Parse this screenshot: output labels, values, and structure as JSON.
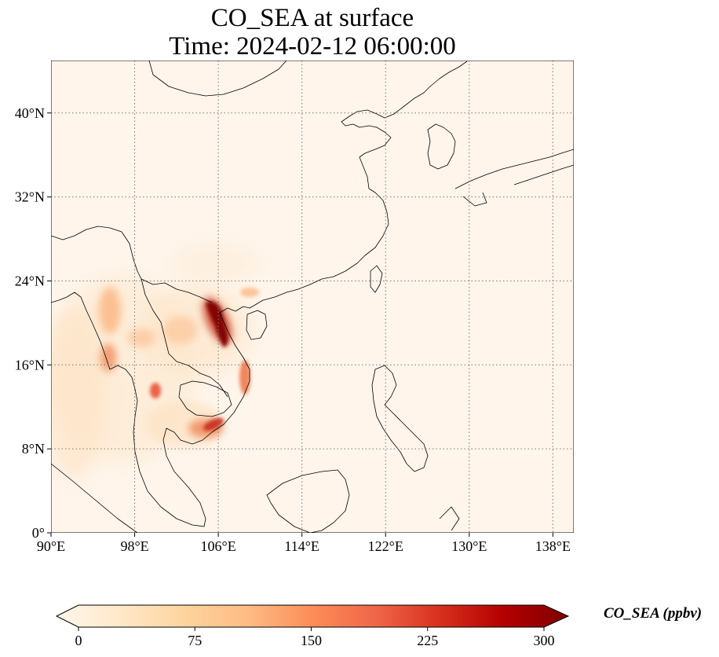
{
  "figure": {
    "title_line1": "CO_SEA at surface",
    "title_line2": "Time: 2024-02-12 06:00:00"
  },
  "map": {
    "projection": "PlateCarree",
    "lon_range": [
      90,
      140
    ],
    "lat_range": [
      0,
      45
    ],
    "gridlines": "dotted",
    "background_color": "#fff5eb",
    "lon_ticks": [
      {
        "value": 90,
        "label": "90°E"
      },
      {
        "value": 98,
        "label": "98°E"
      },
      {
        "value": 106,
        "label": "106°E"
      },
      {
        "value": 114,
        "label": "114°E"
      },
      {
        "value": 122,
        "label": "122°E"
      },
      {
        "value": 130,
        "label": "130°E"
      },
      {
        "value": 138,
        "label": "138°E"
      }
    ],
    "lat_ticks": [
      {
        "value": 0,
        "label": "0°"
      },
      {
        "value": 8,
        "label": "8°N"
      },
      {
        "value": 16,
        "label": "16°N"
      },
      {
        "value": 24,
        "label": "24°N"
      },
      {
        "value": 32,
        "label": "32°N"
      },
      {
        "value": 40,
        "label": "40°N"
      }
    ],
    "hotspots": [
      {
        "region": "northern-vietnam",
        "lon": 106.5,
        "lat": 20.8,
        "value": 300
      },
      {
        "region": "red-river-delta",
        "lon": 106.2,
        "lat": 21.6,
        "value": 300
      },
      {
        "region": "north-central-vietnam",
        "lon": 107.0,
        "lat": 18.5,
        "value": 290
      },
      {
        "region": "central-vietnam-coast",
        "lon": 108.6,
        "lat": 15.3,
        "value": 170
      },
      {
        "region": "mekong-delta",
        "lon": 106.3,
        "lat": 10.6,
        "value": 200
      },
      {
        "region": "southern-cambodia",
        "lon": 104.8,
        "lat": 10.0,
        "value": 130
      },
      {
        "region": "bangkok",
        "lon": 100.6,
        "lat": 13.8,
        "value": 160
      },
      {
        "region": "central-myanmar",
        "lon": 96.5,
        "lat": 20.5,
        "value": 140
      },
      {
        "region": "yangon",
        "lon": 96.2,
        "lat": 16.8,
        "value": 150
      },
      {
        "region": "northern-thailand",
        "lon": 99.5,
        "lat": 18.5,
        "value": 90
      },
      {
        "region": "laos",
        "lon": 102.5,
        "lat": 19.5,
        "value": 80
      },
      {
        "region": "guangxi",
        "lon": 108.5,
        "lat": 23.0,
        "value": 60
      },
      {
        "region": "bay-of-bengal-outflow",
        "lon": 93.0,
        "lat": 14.0,
        "value": 40
      }
    ]
  },
  "colorbar": {
    "colormap": "OrRd",
    "min": 0,
    "max": 300,
    "extend": "both",
    "ticks": [
      0,
      75,
      150,
      225,
      300
    ],
    "label": "CO_SEA (ppbv)",
    "colors": [
      "#fff7ec",
      "#fee8c8",
      "#fdd49e",
      "#fdbb84",
      "#fc8d59",
      "#ef6548",
      "#d7301f",
      "#b30000",
      "#7f0000"
    ]
  }
}
